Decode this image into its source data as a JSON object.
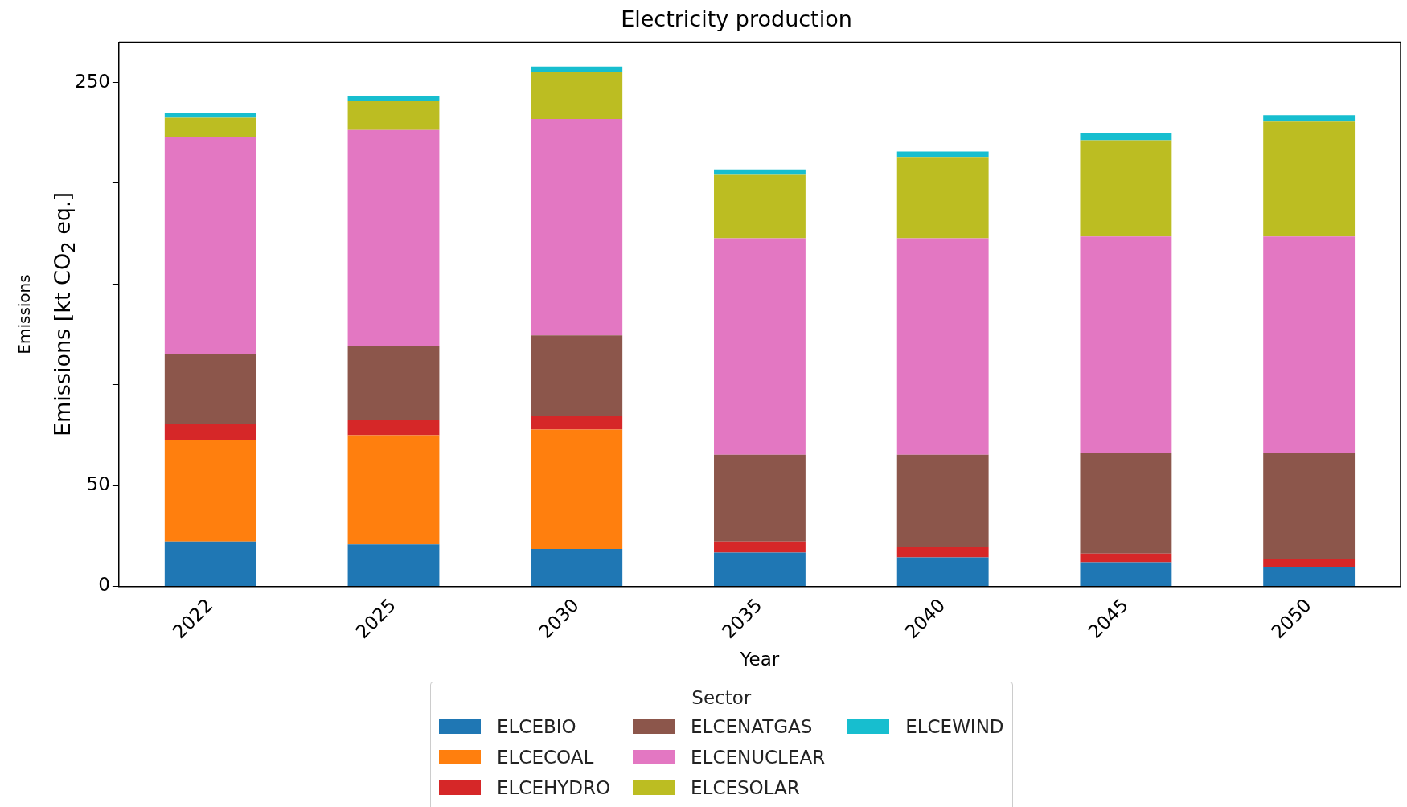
{
  "chart_data": {
    "type": "bar",
    "stacked": true,
    "title": "Electricity production",
    "xlabel": "Year",
    "ylabel": "Emissions [kt CO$_{2}$ eq.]",
    "annotations": [
      "Emissions"
    ],
    "legend_title": "Sector",
    "legend": "bottom",
    "grid": false,
    "categories": [
      "2022",
      "2025",
      "2030",
      "2035",
      "2040",
      "2045",
      "2050"
    ],
    "ylim": [
      0,
      270
    ],
    "yticks": [
      0,
      50,
      {
        "value": 100,
        "label": null
      },
      {
        "value": 150,
        "label": null
      },
      {
        "value": 200,
        "label": null
      },
      250
    ],
    "series": [
      {
        "name": "ELCEBIO",
        "color": "#1f77b4",
        "values": [
          22.2,
          20.8,
          18.5,
          16.7,
          14.4,
          12,
          9.7
        ]
      },
      {
        "name": "ELCECOAL",
        "color": "#ff7f0e",
        "values": [
          50.5,
          54.2,
          59.3,
          0,
          0,
          0,
          0
        ]
      },
      {
        "name": "ELCEHYDRO",
        "color": "#d62728",
        "values": [
          8,
          7.4,
          6.5,
          5.5,
          5,
          4.2,
          3.7
        ]
      },
      {
        "name": "ELCENATGAS",
        "color": "#8c564b",
        "values": [
          34.7,
          36.6,
          40.2,
          43.1,
          45.9,
          50,
          52.8
        ]
      },
      {
        "name": "ELCENUCLEAR",
        "color": "#e377c2",
        "values": [
          107.4,
          107.4,
          107.4,
          107.4,
          107.4,
          107.4,
          107.4
        ]
      },
      {
        "name": "ELCESOLAR",
        "color": "#bcbd22",
        "values": [
          9.7,
          14.3,
          23.2,
          31.5,
          40.3,
          47.7,
          57
        ]
      },
      {
        "name": "ELCEWIND",
        "color": "#17becf",
        "values": [
          2.3,
          2.3,
          2.8,
          2.7,
          2.7,
          3.7,
          3.2
        ]
      }
    ]
  }
}
